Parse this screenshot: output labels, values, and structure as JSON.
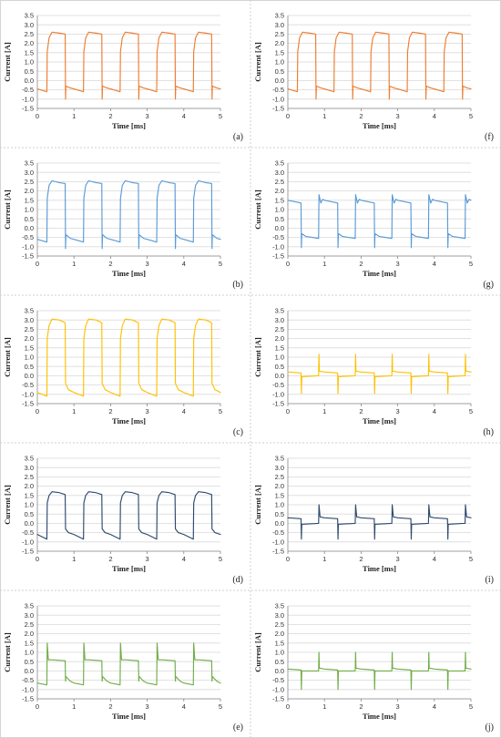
{
  "chart_data": [
    {
      "id": "a",
      "type": "line",
      "panel_label": "(a)",
      "xlabel": "Time [ms]",
      "ylabel": "Current [A]",
      "xlim": [
        0,
        5
      ],
      "ylim": [
        -1.5,
        3.5
      ],
      "xticks": [
        "0",
        "1",
        "2",
        "3",
        "4",
        "5"
      ],
      "yticks": [
        "-1.5",
        "-1.0",
        "-0.5",
        "0.0",
        "0.5",
        "1.0",
        "1.5",
        "2.0",
        "2.5",
        "3.0",
        "3.5"
      ],
      "grid": "horizontal",
      "color": "#ed7d31",
      "period_ms": 1.0,
      "rise_ms": 0.27,
      "fall_ms": 0.77,
      "waveform": [
        {
          "t": 0.0,
          "i": -0.45
        },
        {
          "t": 0.26,
          "i": -0.6
        },
        {
          "t": 0.27,
          "i": 1.55
        },
        {
          "t": 0.32,
          "i": 2.3
        },
        {
          "t": 0.4,
          "i": 2.6
        },
        {
          "t": 0.6,
          "i": 2.55
        },
        {
          "t": 0.76,
          "i": 2.5
        },
        {
          "t": 0.77,
          "i": -1.0
        },
        {
          "t": 0.78,
          "i": -0.3
        },
        {
          "t": 0.9,
          "i": -0.4
        },
        {
          "t": 1.0,
          "i": -0.45
        }
      ]
    },
    {
      "id": "b",
      "type": "line",
      "panel_label": "(b)",
      "xlabel": "Time [ms]",
      "ylabel": "Current [A]",
      "xlim": [
        0,
        5
      ],
      "ylim": [
        -1.5,
        3.5
      ],
      "xticks": [
        "0",
        "1",
        "2",
        "3",
        "4",
        "5"
      ],
      "yticks": [
        "-1.5",
        "-1.0",
        "-0.5",
        "0.0",
        "0.5",
        "1.0",
        "1.5",
        "2.0",
        "2.5",
        "3.0",
        "3.5"
      ],
      "grid": "horizontal",
      "color": "#5b9bd5",
      "period_ms": 1.0,
      "rise_ms": 0.27,
      "fall_ms": 0.77,
      "waveform": [
        {
          "t": 0.0,
          "i": -0.6
        },
        {
          "t": 0.26,
          "i": -0.75
        },
        {
          "t": 0.27,
          "i": 1.6
        },
        {
          "t": 0.32,
          "i": 2.3
        },
        {
          "t": 0.4,
          "i": 2.55
        },
        {
          "t": 0.6,
          "i": 2.45
        },
        {
          "t": 0.76,
          "i": 2.4
        },
        {
          "t": 0.77,
          "i": -1.1
        },
        {
          "t": 0.78,
          "i": -0.35
        },
        {
          "t": 0.9,
          "i": -0.55
        },
        {
          "t": 1.0,
          "i": -0.6
        }
      ]
    },
    {
      "id": "c",
      "type": "line",
      "panel_label": "(c)",
      "xlabel": "Time [ms]",
      "ylabel": "Current [A]",
      "xlim": [
        0,
        5
      ],
      "ylim": [
        -1.5,
        3.5
      ],
      "xticks": [
        "0",
        "1",
        "2",
        "3",
        "4",
        "5"
      ],
      "yticks": [
        "-1.5",
        "-1.0",
        "-0.5",
        "0.0",
        "0.5",
        "1.0",
        "1.5",
        "2.0",
        "2.5",
        "3.0",
        "3.5"
      ],
      "grid": "horizontal",
      "color": "#ffc000",
      "period_ms": 1.0,
      "rise_ms": 0.27,
      "fall_ms": 0.77,
      "waveform": [
        {
          "t": 0.0,
          "i": -0.9
        },
        {
          "t": 0.26,
          "i": -1.1
        },
        {
          "t": 0.27,
          "i": 2.0
        },
        {
          "t": 0.32,
          "i": 2.7
        },
        {
          "t": 0.4,
          "i": 3.05
        },
        {
          "t": 0.6,
          "i": 3.0
        },
        {
          "t": 0.76,
          "i": 2.85
        },
        {
          "t": 0.77,
          "i": -0.4
        },
        {
          "t": 0.85,
          "i": -0.75
        },
        {
          "t": 1.0,
          "i": -0.9
        }
      ]
    },
    {
      "id": "d",
      "type": "line",
      "panel_label": "(d)",
      "xlabel": "Time [ms]",
      "ylabel": "Current [A]",
      "xlim": [
        0,
        5
      ],
      "ylim": [
        -1.5,
        3.5
      ],
      "xticks": [
        "0",
        "1",
        "2",
        "3",
        "4",
        "5"
      ],
      "yticks": [
        "-1.5",
        "-1.0",
        "-0.5",
        "0.0",
        "0.5",
        "1.0",
        "1.5",
        "2.0",
        "2.5",
        "3.0",
        "3.5"
      ],
      "grid": "horizontal",
      "color": "#2e4a6e",
      "period_ms": 1.0,
      "rise_ms": 0.27,
      "fall_ms": 0.77,
      "waveform": [
        {
          "t": 0.0,
          "i": -0.6
        },
        {
          "t": 0.26,
          "i": -0.85
        },
        {
          "t": 0.27,
          "i": 1.1
        },
        {
          "t": 0.32,
          "i": 1.5
        },
        {
          "t": 0.4,
          "i": 1.7
        },
        {
          "t": 0.6,
          "i": 1.65
        },
        {
          "t": 0.76,
          "i": 1.55
        },
        {
          "t": 0.77,
          "i": -0.3
        },
        {
          "t": 0.85,
          "i": -0.5
        },
        {
          "t": 1.0,
          "i": -0.6
        }
      ]
    },
    {
      "id": "e",
      "type": "line",
      "panel_label": "(e)",
      "xlabel": "Time [ms]",
      "ylabel": "Current [A]",
      "xlim": [
        0,
        5
      ],
      "ylim": [
        -1.5,
        3.5
      ],
      "xticks": [
        "0",
        "1",
        "2",
        "3",
        "4",
        "5"
      ],
      "yticks": [
        "-1.5",
        "-1.0",
        "-0.5",
        "0.0",
        "0.5",
        "1.0",
        "1.5",
        "2.0",
        "2.5",
        "3.0",
        "3.5"
      ],
      "grid": "horizontal",
      "color": "#70ad47",
      "period_ms": 1.0,
      "rise_ms": 0.27,
      "fall_ms": 0.77,
      "waveform": [
        {
          "t": 0.0,
          "i": -0.65
        },
        {
          "t": 0.26,
          "i": -0.75
        },
        {
          "t": 0.27,
          "i": 1.5
        },
        {
          "t": 0.3,
          "i": 0.6
        },
        {
          "t": 0.4,
          "i": 0.6
        },
        {
          "t": 0.76,
          "i": 0.55
        },
        {
          "t": 0.77,
          "i": -0.55
        },
        {
          "t": 0.78,
          "i": -0.3
        },
        {
          "t": 0.9,
          "i": -0.55
        },
        {
          "t": 1.0,
          "i": -0.65
        }
      ]
    },
    {
      "id": "f",
      "type": "line",
      "panel_label": "(f)",
      "xlabel": "Time [ms]",
      "ylabel": "Current [A]",
      "xlim": [
        0,
        5
      ],
      "ylim": [
        -1.5,
        3.5
      ],
      "xticks": [
        "0",
        "1",
        "2",
        "3",
        "4",
        "5"
      ],
      "yticks": [
        "-1.5",
        "-1.0",
        "-0.5",
        "0.0",
        "0.5",
        "1.0",
        "1.5",
        "2.0",
        "2.5",
        "3.0",
        "3.5"
      ],
      "grid": "horizontal",
      "color": "#ed7d31",
      "period_ms": 1.0,
      "rise_ms": 0.27,
      "fall_ms": 0.77,
      "waveform": [
        {
          "t": 0.0,
          "i": -0.45
        },
        {
          "t": 0.26,
          "i": -0.6
        },
        {
          "t": 0.27,
          "i": 1.55
        },
        {
          "t": 0.32,
          "i": 2.3
        },
        {
          "t": 0.4,
          "i": 2.6
        },
        {
          "t": 0.6,
          "i": 2.55
        },
        {
          "t": 0.76,
          "i": 2.5
        },
        {
          "t": 0.77,
          "i": -1.0
        },
        {
          "t": 0.78,
          "i": -0.3
        },
        {
          "t": 0.9,
          "i": -0.4
        },
        {
          "t": 1.0,
          "i": -0.45
        }
      ]
    },
    {
      "id": "g",
      "type": "line",
      "panel_label": "(g)",
      "xlabel": "Time [ms]",
      "ylabel": "Current [A]",
      "xlim": [
        0,
        5
      ],
      "ylim": [
        -1.5,
        3.5
      ],
      "xticks": [
        "0",
        "1",
        "2",
        "3",
        "4",
        "5"
      ],
      "yticks": [
        "-1.5",
        "-1.0",
        "-0.5",
        "0.0",
        "0.5",
        "1.0",
        "1.5",
        "2.0",
        "2.5",
        "3.0",
        "3.5"
      ],
      "grid": "horizontal",
      "color": "#5b9bd5",
      "period_ms": 1.0,
      "rise_ms": 0.85,
      "fall_ms": 0.37,
      "waveform": [
        {
          "t": 0.0,
          "i": 1.5
        },
        {
          "t": 0.36,
          "i": 1.35
        },
        {
          "t": 0.37,
          "i": -1.05
        },
        {
          "t": 0.38,
          "i": -0.3
        },
        {
          "t": 0.5,
          "i": -0.45
        },
        {
          "t": 0.84,
          "i": -0.55
        },
        {
          "t": 0.85,
          "i": 1.8
        },
        {
          "t": 0.9,
          "i": 1.35
        },
        {
          "t": 0.95,
          "i": 1.55
        },
        {
          "t": 1.0,
          "i": 1.5
        }
      ]
    },
    {
      "id": "h",
      "type": "line",
      "panel_label": "(h)",
      "xlabel": "Time [ms]",
      "ylabel": "Current [A]",
      "xlim": [
        0,
        5
      ],
      "ylim": [
        -1.5,
        3.5
      ],
      "xticks": [
        "0",
        "1",
        "2",
        "3",
        "4",
        "5"
      ],
      "yticks": [
        "-1.5",
        "-1.0",
        "-0.5",
        "0.0",
        "0.5",
        "1.0",
        "1.5",
        "2.0",
        "2.5",
        "3.0",
        "3.5"
      ],
      "grid": "horizontal",
      "color": "#ffc000",
      "period_ms": 1.0,
      "rise_ms": 0.85,
      "fall_ms": 0.37,
      "waveform": [
        {
          "t": 0.0,
          "i": 0.2
        },
        {
          "t": 0.36,
          "i": 0.15
        },
        {
          "t": 0.37,
          "i": -0.95
        },
        {
          "t": 0.38,
          "i": -0.05
        },
        {
          "t": 0.84,
          "i": 0.0
        },
        {
          "t": 0.85,
          "i": 1.15
        },
        {
          "t": 0.86,
          "i": 0.25
        },
        {
          "t": 1.0,
          "i": 0.2
        }
      ]
    },
    {
      "id": "i",
      "type": "line",
      "panel_label": "(i)",
      "xlabel": "Time [ms]",
      "ylabel": "Current [A]",
      "xlim": [
        0,
        5
      ],
      "ylim": [
        -1.5,
        3.5
      ],
      "xticks": [
        "0",
        "1",
        "2",
        "3",
        "4",
        "5"
      ],
      "yticks": [
        "-1.5",
        "-1.0",
        "-0.5",
        "0.0",
        "0.5",
        "1.0",
        "1.5",
        "2.0",
        "2.5",
        "3.0",
        "3.5"
      ],
      "grid": "horizontal",
      "color": "#2e4a6e",
      "period_ms": 1.0,
      "rise_ms": 0.85,
      "fall_ms": 0.37,
      "waveform": [
        {
          "t": 0.0,
          "i": 0.3
        },
        {
          "t": 0.36,
          "i": 0.25
        },
        {
          "t": 0.37,
          "i": -0.85
        },
        {
          "t": 0.38,
          "i": -0.05
        },
        {
          "t": 0.84,
          "i": 0.0
        },
        {
          "t": 0.85,
          "i": 1.0
        },
        {
          "t": 0.88,
          "i": 0.35
        },
        {
          "t": 1.0,
          "i": 0.3
        }
      ]
    },
    {
      "id": "j",
      "type": "line",
      "panel_label": "(j)",
      "xlabel": "Time [ms]",
      "ylabel": "Current [A]",
      "xlim": [
        0,
        5
      ],
      "ylim": [
        -1.5,
        3.5
      ],
      "xticks": [
        "0",
        "1",
        "2",
        "3",
        "4",
        "5"
      ],
      "yticks": [
        "-1.5",
        "-1.0",
        "-0.5",
        "0.0",
        "0.5",
        "1.0",
        "1.5",
        "2.0",
        "2.5",
        "3.0",
        "3.5"
      ],
      "grid": "horizontal",
      "color": "#70ad47",
      "period_ms": 1.0,
      "rise_ms": 0.85,
      "fall_ms": 0.37,
      "waveform": [
        {
          "t": 0.0,
          "i": 0.1
        },
        {
          "t": 0.36,
          "i": 0.05
        },
        {
          "t": 0.37,
          "i": -1.0
        },
        {
          "t": 0.38,
          "i": 0.0
        },
        {
          "t": 0.84,
          "i": 0.0
        },
        {
          "t": 0.85,
          "i": 1.0
        },
        {
          "t": 0.86,
          "i": 0.15
        },
        {
          "t": 1.0,
          "i": 0.1
        }
      ]
    }
  ]
}
